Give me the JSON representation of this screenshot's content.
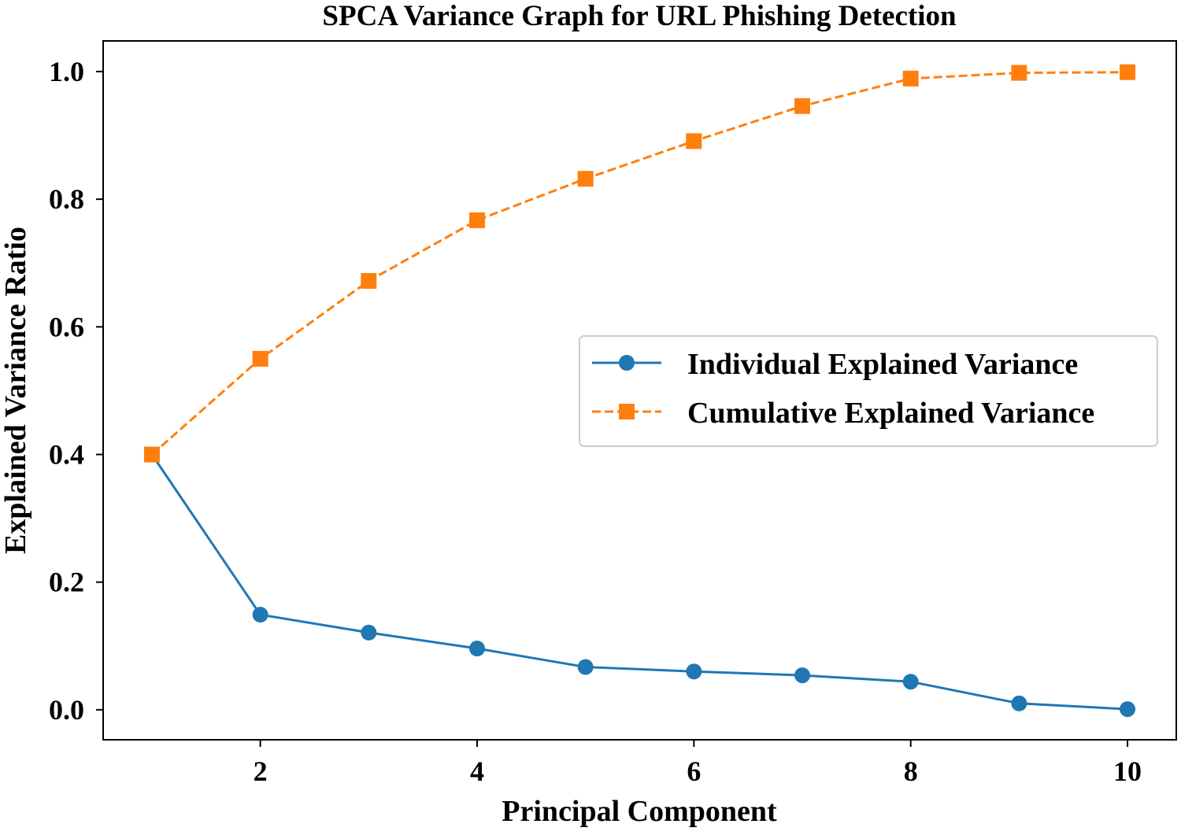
{
  "chart_data": {
    "type": "line",
    "title": "SPCA Variance Graph for URL Phishing Detection",
    "xlabel": "Principal Component",
    "ylabel": "Explained Variance Ratio",
    "x": [
      1,
      2,
      3,
      4,
      5,
      6,
      7,
      8,
      9,
      10
    ],
    "xlim": [
      0.55,
      10.45
    ],
    "ylim": [
      -0.047,
      1.048
    ],
    "xticks": [
      2,
      4,
      6,
      8,
      10
    ],
    "yticks": [
      0.0,
      0.2,
      0.4,
      0.6,
      0.8,
      1.0
    ],
    "ytick_labels": [
      "0.0",
      "0.2",
      "0.4",
      "0.6",
      "0.8",
      "1.0"
    ],
    "grid": false,
    "legend_position": "center-right",
    "series": [
      {
        "name": "Individual Explained Variance",
        "values": [
          0.4,
          0.149,
          0.121,
          0.096,
          0.067,
          0.06,
          0.054,
          0.044,
          0.01,
          0.001
        ],
        "color": "#1f77b4",
        "marker": "circle",
        "linestyle": "solid"
      },
      {
        "name": "Cumulative Explained Variance",
        "values": [
          0.4,
          0.55,
          0.672,
          0.767,
          0.832,
          0.891,
          0.946,
          0.989,
          0.998,
          0.999
        ],
        "color": "#ff7f0e",
        "marker": "square",
        "linestyle": "dashed"
      }
    ]
  }
}
